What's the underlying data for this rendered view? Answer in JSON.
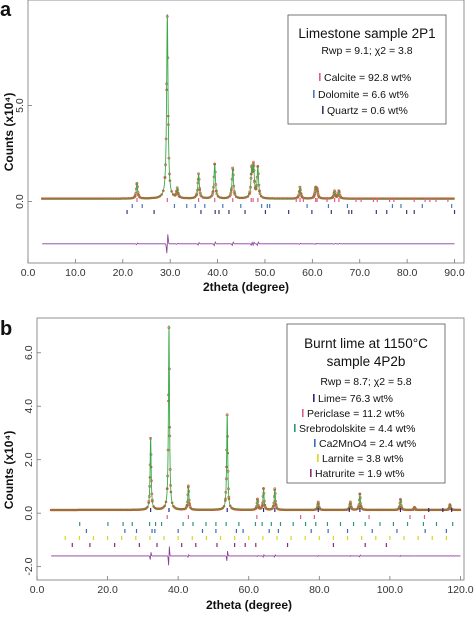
{
  "chart_data": [
    {
      "type": "line",
      "panel_label": "a",
      "xlabel": "2theta (degree)",
      "ylabel": "Counts (x10⁴)",
      "xlim": [
        0,
        92
      ],
      "ylim": [
        -3.2,
        10.5
      ],
      "xticks": [
        0.0,
        10.0,
        20.0,
        30.0,
        40.0,
        50.0,
        60.0,
        70.0,
        80.0,
        90.0
      ],
      "xtick_labels": [
        "0.0",
        "10.0",
        "20.0",
        "30.0",
        "40.0",
        "50.0",
        "60.0",
        "70.0",
        "80.0",
        "90.0"
      ],
      "yticks": [
        0.0,
        5.0
      ],
      "ytick_labels": [
        "0.0",
        "5.0"
      ],
      "range": [
        3,
        90
      ],
      "baseline": 0.15,
      "difference_offset": -2.2,
      "legend": {
        "title": "Limestone sample 2P1",
        "stats": "Rwp = 9.1; χ2 = 3.8",
        "items": [
          "Calcite = 92.8 wt%",
          "Dolomite = 6.6 wt%",
          "Quartz = 0.6 wt%"
        ]
      },
      "peaks": [
        [
          23.0,
          0.8
        ],
        [
          29.4,
          9.6
        ],
        [
          31.5,
          0.5
        ],
        [
          36.0,
          1.3
        ],
        [
          39.4,
          1.8
        ],
        [
          43.2,
          1.6
        ],
        [
          47.2,
          1.4
        ],
        [
          47.6,
          1.6
        ],
        [
          48.5,
          1.6
        ],
        [
          57.4,
          0.6
        ],
        [
          60.7,
          0.5
        ],
        [
          61.0,
          0.4
        ],
        [
          64.7,
          0.4
        ],
        [
          65.6,
          0.4
        ]
      ],
      "series": [
        {
          "name": "Calcite",
          "tick_color": "#d95f8a",
          "reflections": [
            23.0,
            29.4,
            36.0,
            39.4,
            43.2,
            47.1,
            47.5,
            48.5,
            56.6,
            57.4,
            58.1,
            60.7,
            61.0,
            63.1,
            64.7,
            65.6,
            69.2,
            70.3,
            72.9,
            73.7,
            76.3,
            77.2,
            81.5,
            83.8,
            84.8,
            86.1,
            88.6
          ]
        },
        {
          "name": "Dolomite",
          "tick_color": "#4a7ab8",
          "reflections": [
            22.0,
            24.1,
            30.9,
            33.5,
            35.3,
            37.3,
            41.1,
            44.9,
            49.3,
            50.5,
            51.0,
            58.9,
            63.4,
            67.4,
            76.9,
            78.7,
            83.2,
            89.4
          ]
        },
        {
          "name": "Quartz",
          "tick_color": "#3a3a6a",
          "reflections": [
            20.9,
            26.6,
            36.5,
            39.5,
            40.3,
            42.4,
            45.8,
            50.1,
            55.0,
            59.9,
            64.0,
            67.7,
            68.3,
            73.5,
            75.7,
            79.9,
            81.5,
            90.0
          ]
        }
      ]
    },
    {
      "type": "line",
      "panel_label": "b",
      "xlabel": "2theta (degree)",
      "ylabel": "Counts (x10⁴)",
      "xlim": [
        0,
        121
      ],
      "ylim": [
        -2.5,
        7.3
      ],
      "xticks": [
        0.0,
        20.0,
        40.0,
        60.0,
        80.0,
        100.0,
        120.0
      ],
      "xtick_labels": [
        "0.0",
        "20.0",
        "40.0",
        "60.0",
        "80.0",
        "100.0",
        "120.0"
      ],
      "yticks": [
        -2.0,
        0.0,
        2.0,
        4.0,
        6.0
      ],
      "ytick_labels": [
        "-2.0",
        "0.0",
        "2.0",
        "4.0",
        "6.0"
      ],
      "range": [
        4,
        120
      ],
      "baseline": 0.12,
      "difference_offset": -1.6,
      "legend": {
        "title_lines": [
          "Burnt lime at 1150°C",
          "sample 4P2b"
        ],
        "stats": "Rwp = 8.7; χ2 = 5.8",
        "items": [
          "Lime= 76.3 wt%",
          "Periclase = 11.2 wt%",
          "Srebrodolskite = 4.4 wt%",
          "Ca2MnO4 = 2.4 wt%",
          "Larnite = 3.8 wt%",
          "Hatrurite = 1.9 wt%"
        ]
      },
      "peaks": [
        [
          32.2,
          2.7
        ],
        [
          37.4,
          6.9
        ],
        [
          42.9,
          0.9
        ],
        [
          53.9,
          3.6
        ],
        [
          62.5,
          0.4
        ],
        [
          64.2,
          0.8
        ],
        [
          67.4,
          0.8
        ],
        [
          79.7,
          0.3
        ],
        [
          88.8,
          0.3
        ],
        [
          91.5,
          0.6
        ],
        [
          103.0,
          0.4
        ],
        [
          107.0,
          0.1
        ],
        [
          117.0,
          0.2
        ]
      ],
      "series": [
        {
          "name": "Lime",
          "tick_color": "#2a2a7a",
          "reflections": [
            32.2,
            37.4,
            53.9,
            64.2,
            67.4,
            79.7,
            88.5,
            91.5,
            103.0,
            111.0,
            115.0,
            117.5
          ]
        },
        {
          "name": "Periclase",
          "tick_color": "#d95f8a",
          "reflections": [
            36.9,
            42.9,
            62.3,
            74.7,
            78.6,
            94.1,
            105.7,
            109.8
          ]
        },
        {
          "name": "Srebrodolskite",
          "tick_color": "#2e9a6a",
          "reflections": [
            12.1,
            20.1,
            24.4,
            27.0,
            31.9,
            33.6,
            35.3,
            41.4,
            44.2,
            47.9,
            50.7,
            53.6,
            57.2,
            61.9,
            63.8,
            66.4,
            69.0,
            72.6,
            76.1,
            79.0,
            82.3,
            86.0,
            89.7,
            93.0,
            97.2,
            101.0,
            105.0,
            109.5,
            113.2,
            117.8
          ]
        },
        {
          "name": "Ca2MnO4",
          "tick_color": "#3a6ab8",
          "reflections": [
            14.0,
            24.9,
            28.2,
            32.6,
            33.4,
            40.0,
            46.9,
            50.7,
            56.5,
            58.4,
            65.8,
            68.4,
            77.7,
            82.5,
            88.0,
            95.0,
            102.0,
            110.0,
            116.0
          ]
        },
        {
          "name": "Larnite",
          "tick_color": "#d8d820",
          "reflections": [
            8.0,
            12.0,
            16.0,
            20.0,
            24.0,
            28.0,
            32.0,
            36.0,
            40.0,
            44.0,
            48.0,
            52.0,
            56.0,
            60.0,
            64.0,
            68.0,
            72.0,
            76.0,
            80.0,
            84.0,
            88.0,
            92.0,
            96.0,
            100.0,
            104.0,
            108.0,
            112.0,
            116.0
          ]
        },
        {
          "name": "Hatrurite",
          "tick_color": "#8a2a7a",
          "reflections": [
            10.0,
            15.0,
            22.0,
            29.0,
            34.0,
            41.0,
            45.0,
            51.0,
            56.0,
            59.0,
            62.0,
            71.0,
            84.0,
            93.0,
            99.0
          ]
        }
      ]
    }
  ]
}
